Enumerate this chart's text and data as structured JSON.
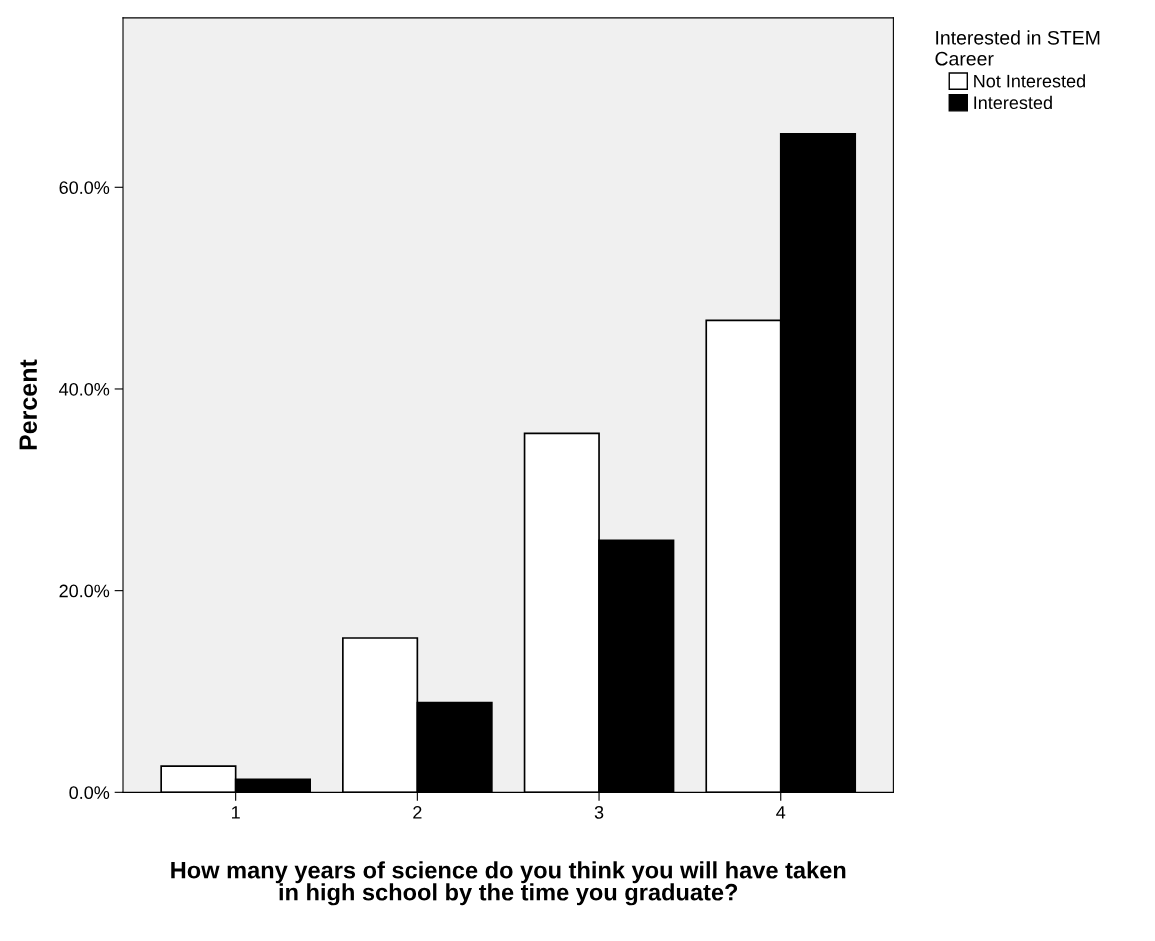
{
  "chart_data": {
    "type": "bar",
    "xlabel": "How many years of science do you think you will have taken in high school by the time you graduate?",
    "ylabel": "Percent",
    "legend_title": "Interested in STEM Career",
    "categories": [
      "1",
      "2",
      "3",
      "4"
    ],
    "series": [
      {
        "name": "Not Interested",
        "color": "#ffffff",
        "values": [
          2.6,
          15.3,
          35.6,
          46.8
        ]
      },
      {
        "name": "Interested",
        "color": "#000000",
        "values": [
          1.3,
          8.9,
          25.0,
          65.3
        ]
      }
    ],
    "ylim": [
      0,
      76.8
    ],
    "yticks": [
      {
        "value": 0,
        "label": "0.0%"
      },
      {
        "value": 20,
        "label": "20.0%"
      },
      {
        "value": 40,
        "label": "40.0%"
      },
      {
        "value": 60,
        "label": "60.0%"
      }
    ],
    "grid": false,
    "legend": "top right"
  }
}
